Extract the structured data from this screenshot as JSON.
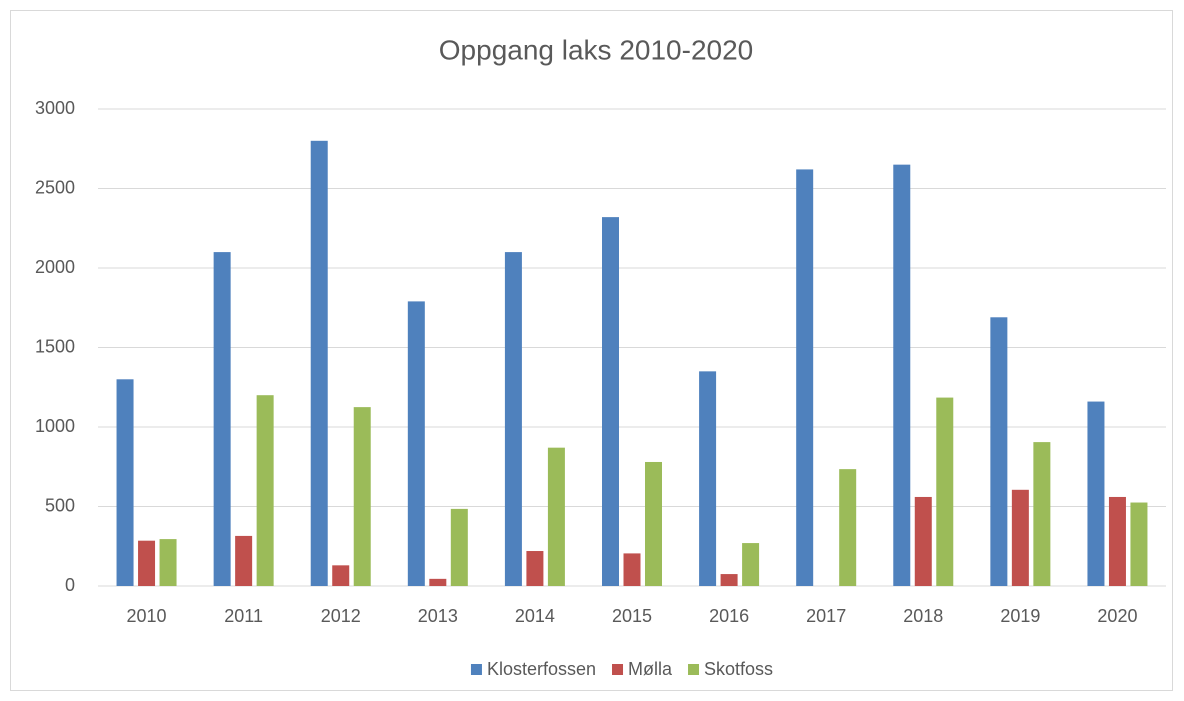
{
  "chart_data": {
    "type": "bar",
    "title": "Oppgang laks 2010-2020",
    "categories": [
      "2010",
      "2011",
      "2012",
      "2013",
      "2014",
      "2015",
      "2016",
      "2017",
      "2018",
      "2019",
      "2020"
    ],
    "series": [
      {
        "name": "Klosterfossen",
        "color": "#4f81bd",
        "values": [
          1300,
          2100,
          2800,
          1790,
          2100,
          2320,
          1350,
          2620,
          2650,
          1690,
          1160
        ]
      },
      {
        "name": "Mølla",
        "color": "#c0504d",
        "values": [
          285,
          315,
          130,
          45,
          220,
          205,
          75,
          null,
          560,
          605,
          560
        ]
      },
      {
        "name": "Skotfoss",
        "color": "#9bbb59",
        "values": [
          295,
          1200,
          1125,
          485,
          870,
          780,
          270,
          735,
          1185,
          905,
          525
        ]
      }
    ],
    "ylim": [
      0,
      3000
    ],
    "yticks": [
      0,
      500,
      1000,
      1500,
      2000,
      2500,
      3000
    ],
    "grid": true,
    "legend": "bottom"
  }
}
